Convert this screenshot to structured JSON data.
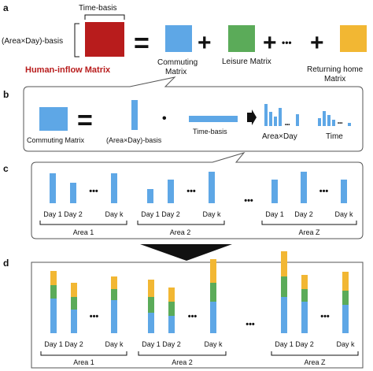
{
  "panels": {
    "a": "a",
    "b": "b",
    "c": "c",
    "d": "d"
  },
  "colors": {
    "red": "#b81c1c",
    "blue": "#5ea7e6",
    "green": "#5bab59",
    "yellow": "#f2b733",
    "dark": "#111111",
    "title_red": "#b81c1c",
    "border": "#555555"
  },
  "a": {
    "time_basis": "Time-basis",
    "area_day_basis": "(Area×Day)-basis",
    "human_inflow": "Human-inflow Matrix",
    "commuting_line1": "Commuting",
    "commuting_line2": "Matrix",
    "leisure": "Leisure Matrix",
    "returning_line1": "Returning home",
    "returning_line2": "Matrix",
    "ellipsis": "•••",
    "plus": "+",
    "equals": "="
  },
  "b": {
    "commuting_matrix": "Commuting Matrix",
    "area_day_basis": "(Area×Day)-basis",
    "time_basis": "Time-basis",
    "area_x_day": "Area×Day",
    "time": "Time",
    "dot": "•",
    "ellipsis": "•••"
  },
  "c": {
    "day_labels": [
      "Day 1",
      "Day 2",
      "Day k"
    ],
    "areas": [
      "Area 1",
      "Area 2",
      "Area Z"
    ],
    "ellipsis": "•••"
  },
  "d": {
    "day_labels": [
      "Day 1",
      "Day 2",
      "Day k"
    ],
    "areas": [
      "Area 1",
      "Area 2",
      "Area Z"
    ],
    "ellipsis": "•••"
  }
}
